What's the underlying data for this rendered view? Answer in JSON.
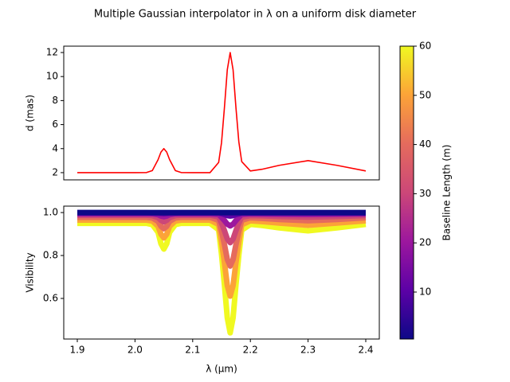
{
  "title": "Multiple Gaussian interpolator in λ on a uniform disk diameter",
  "chart_data": [
    {
      "type": "line",
      "ylabel": "d (mas)",
      "x": [
        1.9,
        1.95,
        2.0,
        2.02,
        2.03,
        2.04,
        2.045,
        2.05,
        2.055,
        2.06,
        2.07,
        2.08,
        2.1,
        2.13,
        2.145,
        2.15,
        2.155,
        2.16,
        2.165,
        2.17,
        2.175,
        2.18,
        2.185,
        2.2,
        2.22,
        2.25,
        2.3,
        2.35,
        2.4
      ],
      "series": [
        {
          "color": "#ff0000",
          "values": [
            2.0,
            2.0,
            2.0,
            2.01,
            2.17,
            3.08,
            3.71,
            4.0,
            3.71,
            3.08,
            2.17,
            2.01,
            2.0,
            2.0,
            2.85,
            4.5,
            7.4,
            10.57,
            12.0,
            10.57,
            7.4,
            4.56,
            2.92,
            2.14,
            2.28,
            2.61,
            3.0,
            2.61,
            2.14
          ]
        }
      ],
      "xlim": [
        1.8765,
        2.4235
      ],
      "ylim": [
        1.4,
        12.53
      ],
      "yticks": [
        2,
        4,
        6,
        8,
        10,
        12
      ]
    },
    {
      "type": "line",
      "ylabel": "Visibility",
      "xlabel": "λ (μm)",
      "x": [
        1.9,
        1.95,
        2.0,
        2.02,
        2.03,
        2.04,
        2.045,
        2.05,
        2.055,
        2.06,
        2.07,
        2.08,
        2.1,
        2.13,
        2.145,
        2.15,
        2.155,
        2.16,
        2.165,
        2.17,
        2.175,
        2.18,
        2.185,
        2.2,
        2.22,
        2.25,
        2.3,
        2.35,
        2.4
      ],
      "series": [
        {
          "color": "#f0f921",
          "values": [
            0.95,
            0.95,
            0.95,
            0.95,
            0.944,
            0.908,
            0.855,
            0.83,
            0.855,
            0.908,
            0.944,
            0.95,
            0.95,
            0.95,
            0.92,
            0.806,
            0.664,
            0.51,
            0.44,
            0.51,
            0.664,
            0.803,
            0.918,
            0.945,
            0.94,
            0.929,
            0.915,
            0.929,
            0.945
          ]
        },
        {
          "color": "#fca338",
          "values": [
            0.965,
            0.965,
            0.965,
            0.965,
            0.961,
            0.936,
            0.899,
            0.882,
            0.899,
            0.936,
            0.961,
            0.965,
            0.965,
            0.965,
            0.944,
            0.865,
            0.767,
            0.66,
            0.611,
            0.66,
            0.767,
            0.863,
            0.943,
            0.962,
            0.958,
            0.951,
            0.941,
            0.951,
            0.962
          ]
        },
        {
          "color": "#e56b5d",
          "values": [
            0.978,
            0.978,
            0.978,
            0.978,
            0.975,
            0.959,
            0.936,
            0.925,
            0.936,
            0.959,
            0.975,
            0.978,
            0.978,
            0.978,
            0.964,
            0.914,
            0.851,
            0.782,
            0.751,
            0.782,
            0.851,
            0.913,
            0.964,
            0.976,
            0.973,
            0.968,
            0.962,
            0.968,
            0.976
          ]
        },
        {
          "color": "#cc4778",
          "values": [
            0.988,
            0.988,
            0.988,
            0.988,
            0.986,
            0.977,
            0.964,
            0.957,
            0.964,
            0.977,
            0.986,
            0.988,
            0.988,
            0.988,
            0.98,
            0.951,
            0.916,
            0.877,
            0.86,
            0.877,
            0.916,
            0.951,
            0.979,
            0.986,
            0.985,
            0.982,
            0.979,
            0.982,
            0.986
          ]
        },
        {
          "color": "#9c179e",
          "values": [
            0.994,
            0.994,
            0.994,
            0.994,
            0.994,
            0.99,
            0.984,
            0.981,
            0.984,
            0.99,
            0.994,
            0.994,
            0.994,
            0.994,
            0.991,
            0.978,
            0.963,
            0.946,
            0.938,
            0.946,
            0.963,
            0.978,
            0.991,
            0.994,
            0.993,
            0.992,
            0.991,
            0.992,
            0.994
          ]
        },
        {
          "color": "#5c01a6",
          "values": [
            0.999,
            0.999,
            0.999,
            0.999,
            0.998,
            0.997,
            0.996,
            0.995,
            0.996,
            0.997,
            0.998,
            0.999,
            0.999,
            0.999,
            0.998,
            0.995,
            0.991,
            0.986,
            0.984,
            0.986,
            0.991,
            0.994,
            0.998,
            0.998,
            0.998,
            0.998,
            0.998,
            0.998,
            0.998
          ]
        },
        {
          "color": "#0d0887",
          "values": [
            1,
            1,
            1,
            1,
            1,
            1,
            1,
            1,
            1,
            1,
            1,
            1,
            1,
            1,
            1,
            1,
            1,
            1,
            1,
            1,
            1,
            1,
            1,
            1,
            1,
            1,
            1,
            1,
            1
          ]
        }
      ],
      "xlim": [
        1.8765,
        2.4235
      ],
      "ylim": [
        0.411,
        1.03
      ],
      "xticks": [
        1.9,
        {
          "value": 2,
          "label": "2.0"
        },
        2.1,
        2.2,
        2.3,
        2.4
      ],
      "yticks": [
        0.6,
        0.8,
        {
          "value": 1,
          "label": "1.0"
        }
      ]
    },
    {
      "type": "colorbar",
      "label": "Baseline Length (m)",
      "colormap": [
        "#0d0887",
        "#5c01a6",
        "#9c179e",
        "#cc4778",
        "#e56b5d",
        "#fca338",
        "#f0f921"
      ],
      "ylim": [
        0.45,
        60
      ],
      "yticks": [
        10,
        20,
        30,
        40,
        50,
        60
      ]
    }
  ]
}
